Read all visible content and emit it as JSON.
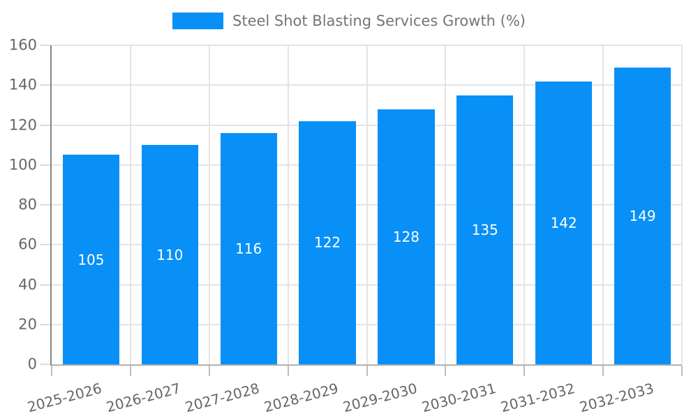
{
  "legend": {
    "label": "Steel Shot Blasting Services Growth (%)"
  },
  "chart_data": {
    "type": "bar",
    "title": "Steel Shot Blasting Services Growth (%)",
    "categories": [
      "2025-2026",
      "2026-2027",
      "2027-2028",
      "2028-2029",
      "2029-2030",
      "2030-2031",
      "2031-2032",
      "2032-2033"
    ],
    "series": [
      {
        "name": "Steel Shot Blasting Services Growth (%)",
        "values": [
          105,
          110,
          116,
          122,
          128,
          135,
          142,
          149
        ]
      }
    ],
    "value_labels": [
      105,
      110,
      116,
      122,
      128,
      135,
      142,
      149
    ],
    "value_label_position": "inside-center",
    "xlabel": "",
    "ylabel": "",
    "ylim": [
      0,
      160
    ],
    "yticks": [
      0,
      20,
      40,
      60,
      80,
      100,
      120,
      140,
      160
    ],
    "grid": "both",
    "legend_position": "top-center",
    "x_label_rotation_deg": -15
  },
  "colors": {
    "bar": "#0990f7",
    "bar_value_text": "#ffffff",
    "legend_text": "#757575",
    "tick_text": "#666666",
    "axis_line_y": "#878787",
    "axis_line_x": "#b2b2b2",
    "grid_line": "#e4e4e4",
    "background": "#ffffff"
  }
}
